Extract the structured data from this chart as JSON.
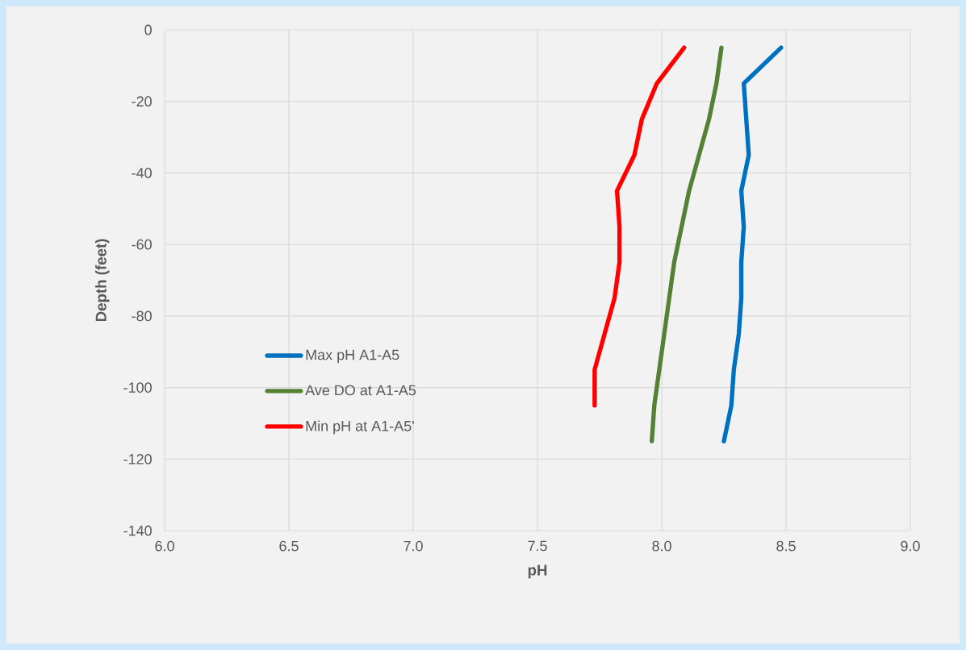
{
  "chart_data": {
    "type": "line",
    "xlabel": "pH",
    "ylabel": "Depth (feet)",
    "xlim": [
      6,
      9
    ],
    "ylim": [
      -140,
      0
    ],
    "xticks": [
      {
        "value": 6,
        "label": "6.0"
      },
      {
        "value": 6.5,
        "label": "6.5"
      },
      {
        "value": 7,
        "label": "7.0"
      },
      {
        "value": 7.5,
        "label": "7.5"
      },
      {
        "value": 8,
        "label": "8.0"
      },
      {
        "value": 8.5,
        "label": "8.5"
      },
      {
        "value": 9,
        "label": "9.0"
      }
    ],
    "yticks": [
      0,
      -20,
      -40,
      -60,
      -80,
      -100,
      -120,
      -140
    ],
    "grid": true,
    "legend": "left",
    "marker": "none",
    "line_style": "solid",
    "series": [
      {
        "name": "Max pH A1-A5",
        "color": "#0070c0",
        "x": [
          8.48,
          8.33,
          8.34,
          8.35,
          8.32,
          8.33,
          8.32,
          8.32,
          8.31,
          8.29,
          8.28,
          8.25
        ],
        "values": [
          -5,
          -15,
          -25,
          -35,
          -45,
          -55,
          -65,
          -75,
          -85,
          -95,
          -105,
          -115
        ]
      },
      {
        "name": "Ave DO at A1-A5",
        "color": "#548235",
        "x": [
          8.24,
          8.22,
          8.19,
          8.15,
          8.11,
          8.08,
          8.05,
          8.03,
          8.01,
          7.99,
          7.97,
          7.96
        ],
        "values": [
          -5,
          -15,
          -25,
          -35,
          -45,
          -55,
          -65,
          -75,
          -85,
          -95,
          -105,
          -115
        ]
      },
      {
        "name": "Min pH at A1-A5'",
        "color": "#ff0000",
        "x": [
          8.09,
          7.98,
          7.92,
          7.89,
          7.82,
          7.83,
          7.83,
          7.81,
          7.77,
          7.73,
          7.73
        ],
        "values": [
          -5,
          -15,
          -25,
          -35,
          -45,
          -55,
          -65,
          -75,
          -85,
          -95,
          -105
        ]
      }
    ]
  }
}
